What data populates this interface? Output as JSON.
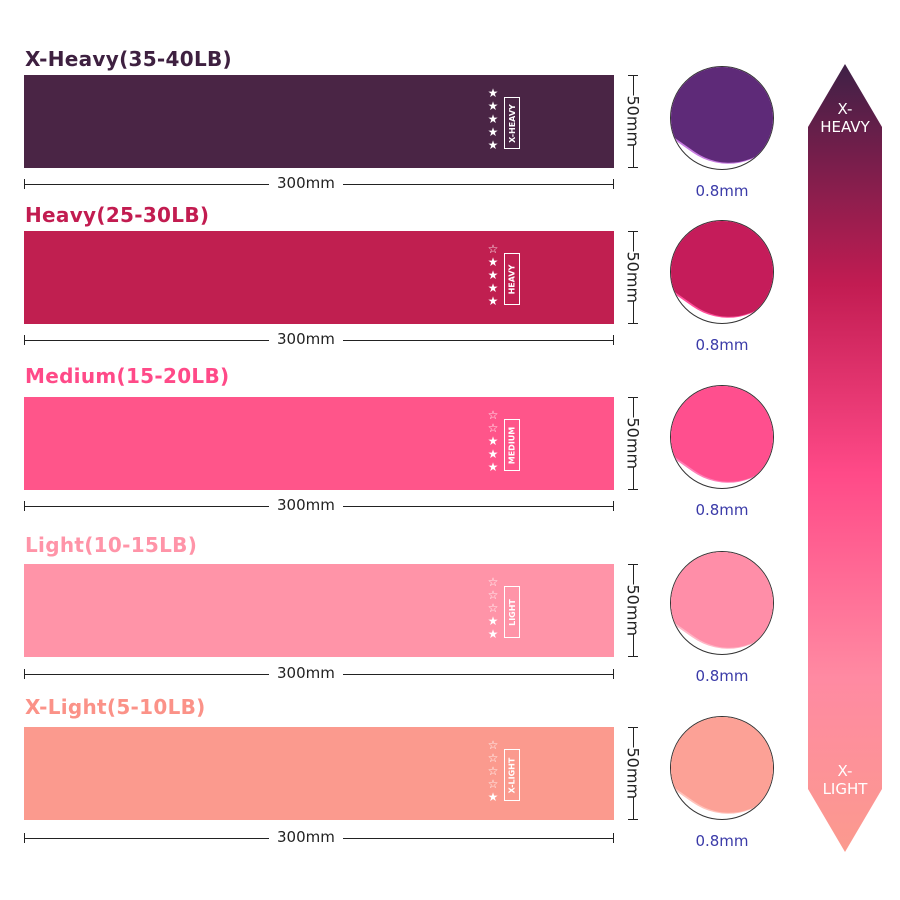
{
  "bands": [
    {
      "title": "X-Heavy(35-40LB)",
      "tag": "X-HEAVY",
      "stars_filled": 5,
      "stars_total": 5,
      "length": "300mm",
      "width": "50mm",
      "thickness": "0.8mm",
      "color": "#4a2545",
      "title_color": "#3e2040",
      "circle_color": "#5e2a78",
      "edge_color": "#c67be0"
    },
    {
      "title": "Heavy(25-30LB)",
      "tag": "HEAVY",
      "stars_filled": 4,
      "stars_total": 5,
      "length": "300mm",
      "width": "50mm",
      "thickness": "0.8mm",
      "color": "#c01f50",
      "title_color": "#c21c50",
      "circle_color": "#c51c5a",
      "edge_color": "#ff4f9a"
    },
    {
      "title": "Medium(15-20LB)",
      "tag": "MEDIUM",
      "stars_filled": 3,
      "stars_total": 5,
      "length": "300mm",
      "width": "50mm",
      "thickness": "0.8mm",
      "color": "#ff558a",
      "title_color": "#ff4a88",
      "circle_color": "#ff4f8e",
      "edge_color": "#ff80b8"
    },
    {
      "title": "Light(10-15LB)",
      "tag": "LIGHT",
      "stars_filled": 2,
      "stars_total": 5,
      "length": "300mm",
      "width": "50mm",
      "thickness": "0.8mm",
      "color": "#ff94a8",
      "title_color": "#ff94a8",
      "circle_color": "#ff8ea8",
      "edge_color": "#ffb6c6"
    },
    {
      "title": "X-Light(5-10LB)",
      "tag": "X-LIGHT",
      "stars_filled": 1,
      "stars_total": 5,
      "length": "300mm",
      "width": "50mm",
      "thickness": "0.8mm",
      "color": "#fb9a8e",
      "title_color": "#fb9288",
      "circle_color": "#fca196",
      "edge_color": "#ffc3bb"
    }
  ],
  "scale": {
    "top_label": "X-\nHEAVY",
    "bottom_label": "X-\nLIGHT"
  }
}
